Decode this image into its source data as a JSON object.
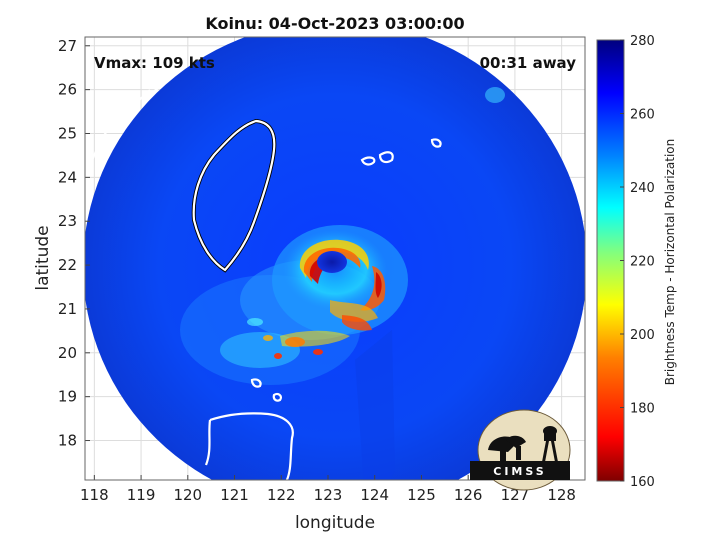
{
  "chart_data": {
    "type": "heatmap",
    "title": "Koinu: 04-Oct-2023 03:00:00",
    "xlabel": "longitude",
    "ylabel": "latitude",
    "xlim": [
      117.8,
      128.5
    ],
    "ylim": [
      17.1,
      27.2
    ],
    "x_ticks": [
      118,
      119,
      120,
      121,
      122,
      123,
      124,
      125,
      126,
      127,
      128
    ],
    "y_ticks": [
      18,
      19,
      20,
      21,
      22,
      23,
      24,
      25,
      26,
      27
    ],
    "grid": true,
    "annotations": {
      "vmax": "Vmax: 109 kts",
      "time_offset": "00:31 away"
    },
    "storm_center": {
      "lon": 123.0,
      "lat": 22.05
    },
    "colorbar": {
      "label": "Brightness Temp - Horizontal Polarization",
      "min": 160,
      "max": 280,
      "ticks": [
        160,
        180,
        200,
        220,
        240,
        260,
        280
      ],
      "colors": [
        "#7f0000",
        "#ff0000",
        "#ff8000",
        "#ffff00",
        "#80ff80",
        "#00ffff",
        "#0080ff",
        "#0000ff",
        "#00007f"
      ]
    },
    "logo": "CIMSS"
  }
}
